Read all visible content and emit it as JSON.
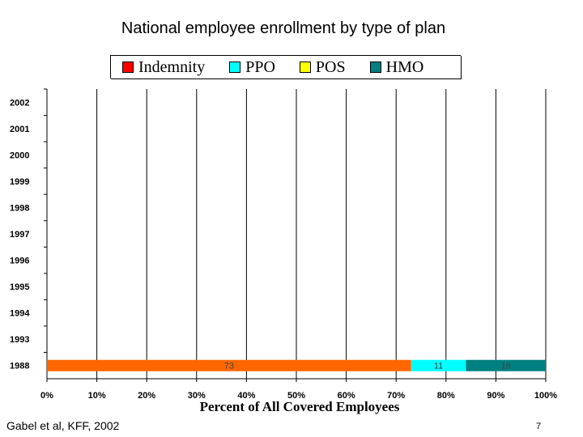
{
  "slide": {
    "title": "National employee enrollment by type of plan",
    "source": "Gabel et al, KFF, 2002",
    "page_number": "7"
  },
  "chart_data": {
    "type": "bar",
    "orientation": "horizontal",
    "stacked": true,
    "categories": [
      "2002",
      "2001",
      "2000",
      "1999",
      "1998",
      "1997",
      "1996",
      "1995",
      "1994",
      "1993",
      "1988"
    ],
    "series": [
      {
        "name": "Indemnity",
        "color": "#ff6600",
        "values": [
          null,
          null,
          null,
          null,
          null,
          null,
          null,
          null,
          null,
          null,
          73
        ]
      },
      {
        "name": "PPO",
        "color": "#00ffff",
        "values": [
          null,
          null,
          null,
          null,
          null,
          null,
          null,
          null,
          null,
          null,
          11
        ]
      },
      {
        "name": "POS",
        "color": "#ffff00",
        "values": [
          null,
          null,
          null,
          null,
          null,
          null,
          null,
          null,
          null,
          null,
          0
        ]
      },
      {
        "name": "HMO",
        "color": "#008080",
        "values": [
          null,
          null,
          null,
          null,
          null,
          null,
          null,
          null,
          null,
          null,
          16
        ]
      }
    ],
    "data_labels": [
      {
        "category": "1988",
        "series": "Indemnity",
        "text": "73"
      },
      {
        "category": "1988",
        "series": "PPO",
        "text": "11"
      },
      {
        "category": "1988",
        "series": "HMO",
        "text": "16"
      }
    ],
    "xlabel": "Percent of All Covered Employees",
    "ylabel": "",
    "xlim": [
      0,
      100
    ],
    "xticks": [
      "0%",
      "10%",
      "20%",
      "30%",
      "40%",
      "50%",
      "60%",
      "70%",
      "80%",
      "90%",
      "100%"
    ],
    "grid": "vertical",
    "legend": {
      "position": "top",
      "entries": [
        {
          "name": "Indemnity",
          "color": "#ff0000"
        },
        {
          "name": "PPO",
          "color": "#00ffff"
        },
        {
          "name": "POS",
          "color": "#ffff00"
        },
        {
          "name": "HMO",
          "color": "#008080"
        }
      ]
    }
  }
}
